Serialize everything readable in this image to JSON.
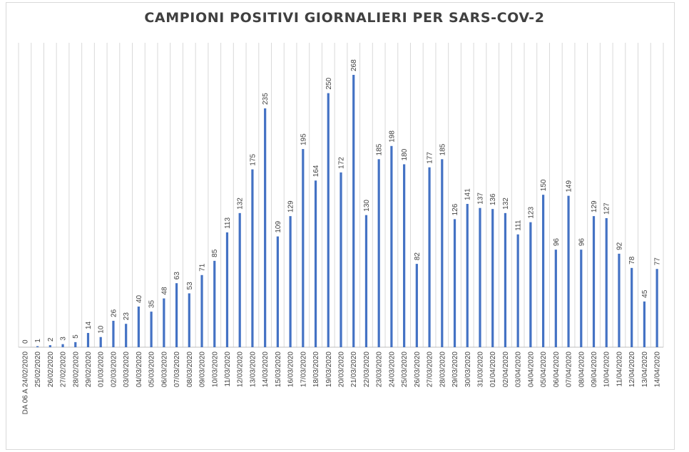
{
  "chart_data": {
    "type": "bar",
    "title": "CAMPIONI POSITIVI GIORNALIERI PER SARS-COV-2",
    "xlabel": "",
    "ylabel": "",
    "ylim": [
      0,
      268
    ],
    "grid": true,
    "legend": "none",
    "colors": {
      "bar": "#4472c4",
      "grid": "#d9d9d9",
      "text": "#404040"
    },
    "categories": [
      "DA 06 A 24/02/2020",
      "25/02/2020",
      "26/02/2020",
      "27/02/2020",
      "28/02/2020",
      "29/02/2020",
      "01/03/2020",
      "02/03/2020",
      "03/03/2020",
      "04/03/2020",
      "05/03/2020",
      "06/03/2020",
      "07/03/2020",
      "08/03/2020",
      "09/03/2020",
      "10/03/2020",
      "11/03/2020",
      "12/03/2020",
      "13/03/2020",
      "14/03/2020",
      "15/03/2020",
      "16/03/2020",
      "17/03/2020",
      "18/03/2020",
      "19/03/2020",
      "20/03/2020",
      "21/03/2020",
      "22/03/2020",
      "23/03/2020",
      "24/03/2020",
      "25/03/2020",
      "26/03/2020",
      "27/03/2020",
      "28/03/2020",
      "29/03/2020",
      "30/03/2020",
      "31/03/2020",
      "01/04/2020",
      "02/04/2020",
      "03/04/2020",
      "04/04/2020",
      "05/04/2020",
      "06/04/2020",
      "07/04/2020",
      "08/04/2020",
      "09/04/2020",
      "10/04/2020",
      "11/04/2020",
      "12/04/2020",
      "13/04/2020",
      "14/04/2020"
    ],
    "values": [
      0,
      1,
      2,
      3,
      5,
      14,
      10,
      26,
      23,
      40,
      35,
      48,
      63,
      53,
      71,
      85,
      113,
      132,
      175,
      235,
      109,
      129,
      195,
      164,
      250,
      172,
      268,
      130,
      185,
      198,
      180,
      82,
      177,
      185,
      126,
      141,
      137,
      136,
      132,
      111,
      123,
      150,
      96,
      149,
      96,
      129,
      127,
      92,
      78,
      45,
      77
    ]
  }
}
